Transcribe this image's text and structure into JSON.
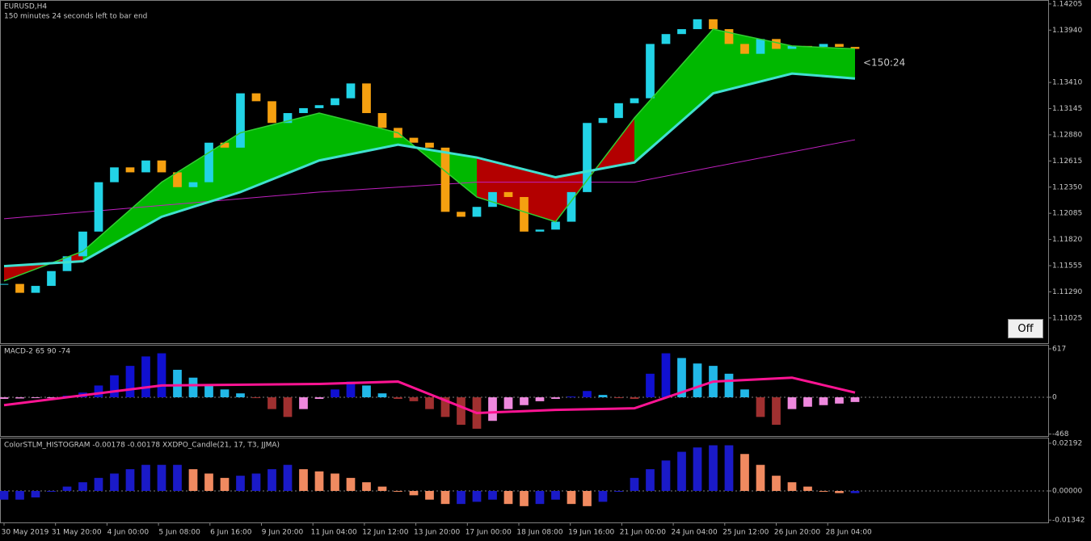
{
  "header": {
    "symbol": "EURUSD,H4",
    "timer": "150 minutes 24 seconds left to bar end"
  },
  "countdown": "<150:24",
  "off_button": "Off",
  "time_axis": [
    "30 May 2019",
    "31 May 20:00",
    "4 Jun 00:00",
    "5 Jun 08:00",
    "6 Jun 16:00",
    "9 Jun 20:00",
    "11 Jun 04:00",
    "12 Jun 12:00",
    "13 Jun 20:00",
    "17 Jun 00:00",
    "18 Jun 08:00",
    "19 Jun 16:00",
    "21 Jun 00:00",
    "24 Jun 04:00",
    "25 Jun 12:00",
    "26 Jun 20:00",
    "28 Jun 04:00"
  ],
  "chart_data": [
    {
      "type": "candlestick",
      "up_color": "#22d3e6",
      "down_color": "#f5a010",
      "values": [
        1.1137,
        1.1128,
        1.1135,
        1.115,
        1.1165,
        1.119,
        1.124,
        1.1255,
        1.125,
        1.1262,
        1.125,
        1.1235,
        1.124,
        1.128,
        1.1275,
        1.133,
        1.1322,
        1.13,
        1.131,
        1.1315,
        1.1318,
        1.1325,
        1.134,
        1.131,
        1.1295,
        1.1285,
        1.128,
        1.1275,
        1.121,
        1.1205,
        1.1215,
        1.123,
        1.1225,
        1.119,
        1.1192,
        1.12,
        1.123,
        1.13,
        1.1305,
        1.132,
        1.1325,
        1.138,
        1.139,
        1.1395,
        1.1405,
        1.1395,
        1.138,
        1.137,
        1.1385,
        1.1375,
        1.1378,
        1.1377,
        1.138,
        1.1377,
        1.1375
      ],
      "ylim": [
        1.1077,
        1.14245
      ],
      "yticks": [
        {
          "value": 1.14205,
          "label": "1.14205"
        },
        {
          "value": 1.1394,
          "label": "1.13940"
        },
        {
          "value": 1.1341,
          "label": "1.13410"
        },
        {
          "value": 1.13145,
          "label": "1.13145"
        },
        {
          "value": 1.1288,
          "label": "1.12880"
        },
        {
          "value": 1.12615,
          "label": "1.12615"
        },
        {
          "value": 1.1235,
          "label": "1.12350"
        },
        {
          "value": 1.12085,
          "label": "1.12085"
        },
        {
          "value": 1.1182,
          "label": "1.11820"
        },
        {
          "value": 1.11555,
          "label": "1.11555"
        },
        {
          "value": 1.1129,
          "label": "1.11290"
        },
        {
          "value": 1.11025,
          "label": "1.11025"
        }
      ],
      "series": [
        {
          "color": "#32cd32",
          "x": [
            0,
            5,
            10,
            15,
            20,
            25,
            30,
            35,
            40,
            45,
            50,
            54
          ],
          "values": [
            1.114,
            1.117,
            1.124,
            1.129,
            1.131,
            1.129,
            1.1225,
            1.12,
            1.1305,
            1.1395,
            1.1378,
            1.1375
          ]
        },
        {
          "color": "#40e0d0",
          "x": [
            0,
            5,
            10,
            15,
            20,
            25,
            30,
            35,
            40,
            45,
            50,
            54
          ],
          "values": [
            1.1155,
            1.116,
            1.1205,
            1.123,
            1.1262,
            1.1278,
            1.1265,
            1.1245,
            1.126,
            1.133,
            1.135,
            1.1345
          ]
        },
        {
          "color": "#c020c0",
          "x": [
            0,
            20,
            30,
            40,
            54
          ],
          "values": [
            1.1203,
            1.123,
            1.124,
            1.124,
            1.1283
          ]
        }
      ]
    },
    {
      "type": "macd",
      "title": "MACD-2 65 90 -74",
      "colors": {
        "up_rising": "#1010d0",
        "up_falling": "#22b8e8",
        "down_falling": "#a03030",
        "down_rising": "#ee88dd"
      },
      "values": [
        -20,
        -15,
        -10,
        -5,
        20,
        60,
        150,
        280,
        400,
        520,
        560,
        350,
        250,
        150,
        100,
        50,
        -10,
        -150,
        -250,
        -150,
        -20,
        100,
        200,
        150,
        50,
        -20,
        -50,
        -150,
        -250,
        -350,
        -400,
        -300,
        -150,
        -100,
        -50,
        -20,
        10,
        80,
        30,
        -10,
        -20,
        300,
        560,
        500,
        430,
        400,
        300,
        100,
        -250,
        -350,
        -150,
        -120,
        -100,
        -80,
        -60
      ],
      "ylim": [
        -493,
        658
      ],
      "yticks": [
        617,
        0,
        -468
      ],
      "series": [
        {
          "color": "#ff1493",
          "x": [
            0,
            10,
            20,
            25,
            30,
            35,
            40,
            45,
            50,
            54
          ],
          "values": [
            -100,
            150,
            170,
            200,
            -200,
            -160,
            -140,
            200,
            250,
            60
          ]
        }
      ]
    },
    {
      "type": "bar",
      "title": "ColorSTLM_HISTOGRAM -0.00178 -0.00178 XXDPO_Candle(21, 17, T3, JJMA)",
      "colors": {
        "rising": "#1a1ac8",
        "falling": "#f08a60"
      },
      "values": [
        -0.004,
        -0.004,
        -0.003,
        0,
        0.002,
        0.004,
        0.006,
        0.008,
        0.01,
        0.012,
        0.012,
        0.012,
        0.01,
        0.008,
        0.006,
        0.007,
        0.008,
        0.01,
        0.012,
        0.01,
        0.009,
        0.008,
        0.006,
        0.004,
        0.002,
        0,
        -0.002,
        -0.004,
        -0.006,
        -0.006,
        -0.005,
        -0.004,
        -0.006,
        -0.007,
        -0.006,
        -0.004,
        -0.006,
        -0.007,
        -0.005,
        0,
        0.006,
        0.01,
        0.014,
        0.018,
        0.02,
        0.021,
        0.021,
        0.017,
        0.012,
        0.007,
        0.004,
        0.002,
        0,
        -0.001,
        -0.001
      ],
      "ylim": [
        -0.01412,
        0.02415
      ],
      "yticks": [
        0.02192,
        {
          "value": 0,
          "label": "0.00000"
        },
        -0.01342
      ]
    }
  ]
}
